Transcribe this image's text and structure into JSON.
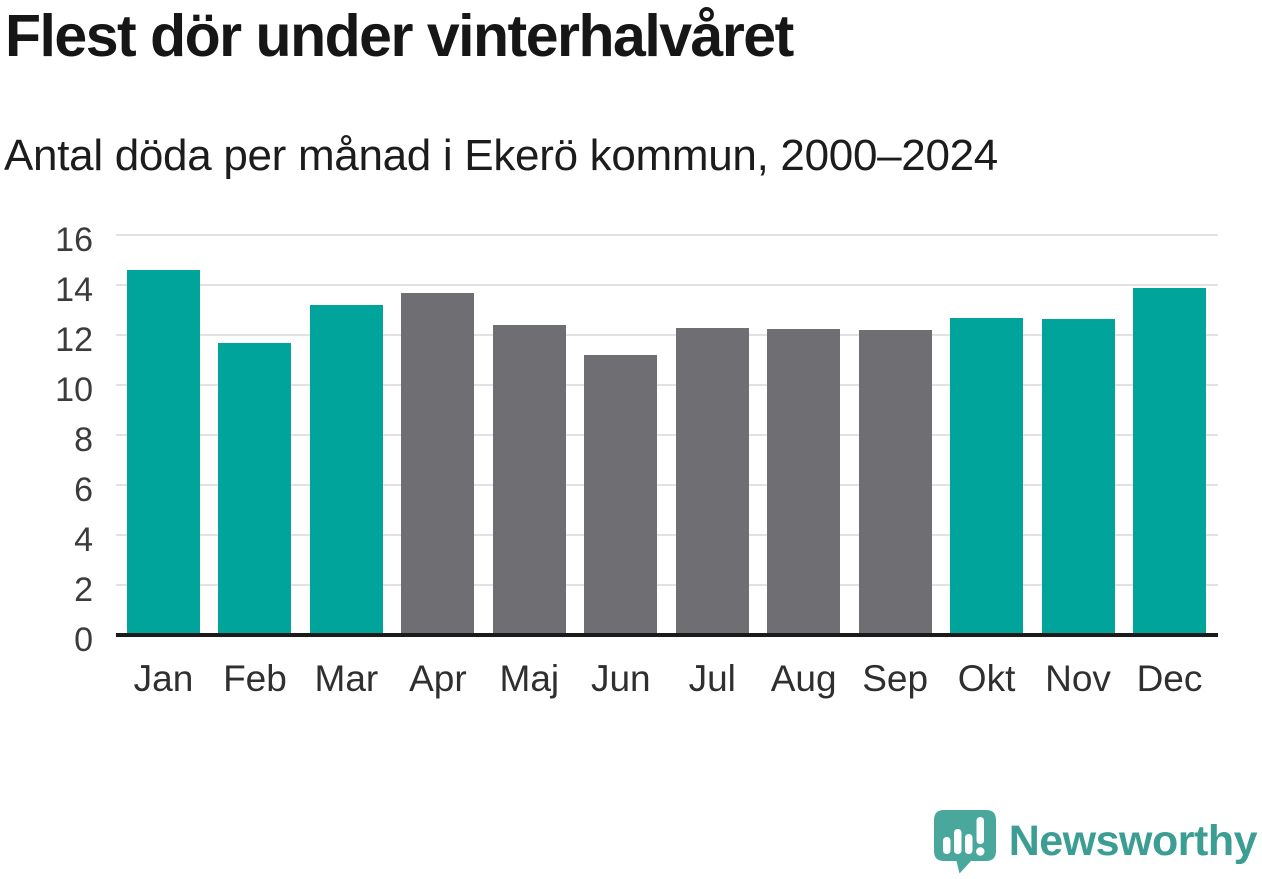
{
  "page": {
    "title": "Flest dör under vinterhalvåret",
    "subtitle": "Antal döda per månad i Ekerö kommun, 2000–2024"
  },
  "chart_data": {
    "type": "bar",
    "title": "Flest dör under vinterhalvåret",
    "subtitle": "Antal döda per månad i Ekerö kommun, 2000–2024",
    "categories": [
      "Jan",
      "Feb",
      "Mar",
      "Apr",
      "Maj",
      "Jun",
      "Jul",
      "Aug",
      "Sep",
      "Okt",
      "Nov",
      "Dec"
    ],
    "values": [
      14.6,
      11.7,
      13.2,
      13.7,
      12.4,
      11.2,
      12.3,
      12.25,
      12.2,
      12.7,
      12.65,
      13.9
    ],
    "color_groups": [
      "winter",
      "winter",
      "winter",
      "summer",
      "summer",
      "summer",
      "summer",
      "summer",
      "summer",
      "winter",
      "winter",
      "winter"
    ],
    "palette": {
      "winter": "#00a49a",
      "summer": "#6e6e73"
    },
    "xlabel": "",
    "ylabel": "",
    "ylim": [
      0,
      16
    ],
    "yticks": [
      0,
      2,
      4,
      6,
      8,
      10,
      12,
      14,
      16
    ],
    "grid": "horizontal",
    "legend": "none",
    "gridline_color": "#e2e2e2",
    "axis_color": "#1b1b1b"
  },
  "branding": {
    "logo_text": "Newsworthy",
    "logo_color_text": "#3c9d93",
    "logo_color_icon": "#4aa79c",
    "logo_glyph_color": "#ffffff"
  }
}
